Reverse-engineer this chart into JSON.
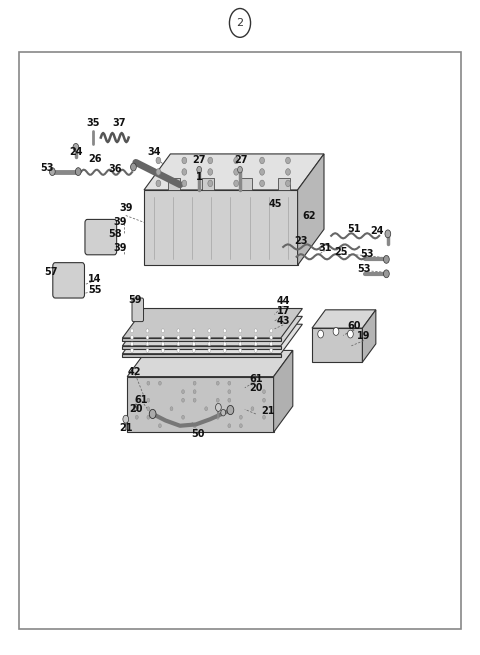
{
  "bg_color": "#ffffff",
  "border_color": "#888888",
  "line_color": "#333333",
  "fig_width": 4.8,
  "fig_height": 6.55,
  "dpi": 100,
  "title_number": "2"
}
